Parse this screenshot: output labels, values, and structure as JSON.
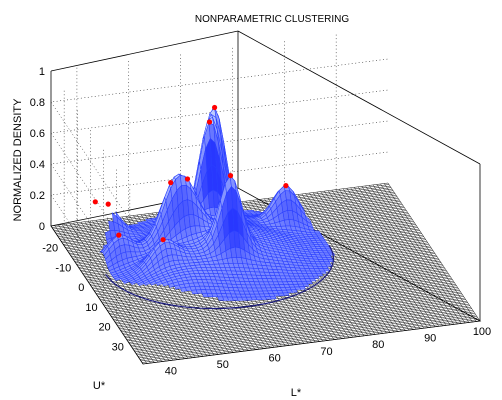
{
  "chart_data": {
    "type": "surface",
    "title": "NONPARAMETRIC CLUSTERING",
    "xlabel": "L*",
    "ylabel": "U*",
    "zlabel": "NORMALIZED DENSITY",
    "xlim": [
      35,
      100
    ],
    "ylim": [
      -30,
      40
    ],
    "zlim": [
      0,
      1
    ],
    "x_ticks": [
      "40",
      "50",
      "60",
      "70",
      "80",
      "90",
      "100"
    ],
    "y_ticks": [
      "-20",
      "-10",
      "0",
      "10",
      "20",
      "30"
    ],
    "z_ticks": [
      "0",
      "0.2",
      "0.4",
      "0.6",
      "0.8",
      "1"
    ],
    "grid": true,
    "surface_color": "#2a3fff",
    "plane_color": "#000000",
    "mode_color": "#ff0000",
    "peaks": [
      {
        "x": 63,
        "y": -16,
        "z": 0.88
      },
      {
        "x": 61,
        "y": -12,
        "z": 0.79
      },
      {
        "x": 76,
        "y": -13,
        "z": 0.46
      },
      {
        "x": 61,
        "y": 4,
        "z": 0.66
      },
      {
        "x": 55,
        "y": -5,
        "z": 0.45
      },
      {
        "x": 52,
        "y": -6,
        "z": 0.47
      },
      {
        "x": 48,
        "y": 4,
        "z": 0.36
      },
      {
        "x": 43,
        "y": -18,
        "z": 0.36
      },
      {
        "x": 41,
        "y": -20,
        "z": 0.37
      },
      {
        "x": 42,
        "y": -6,
        "z": 0.37
      }
    ]
  }
}
